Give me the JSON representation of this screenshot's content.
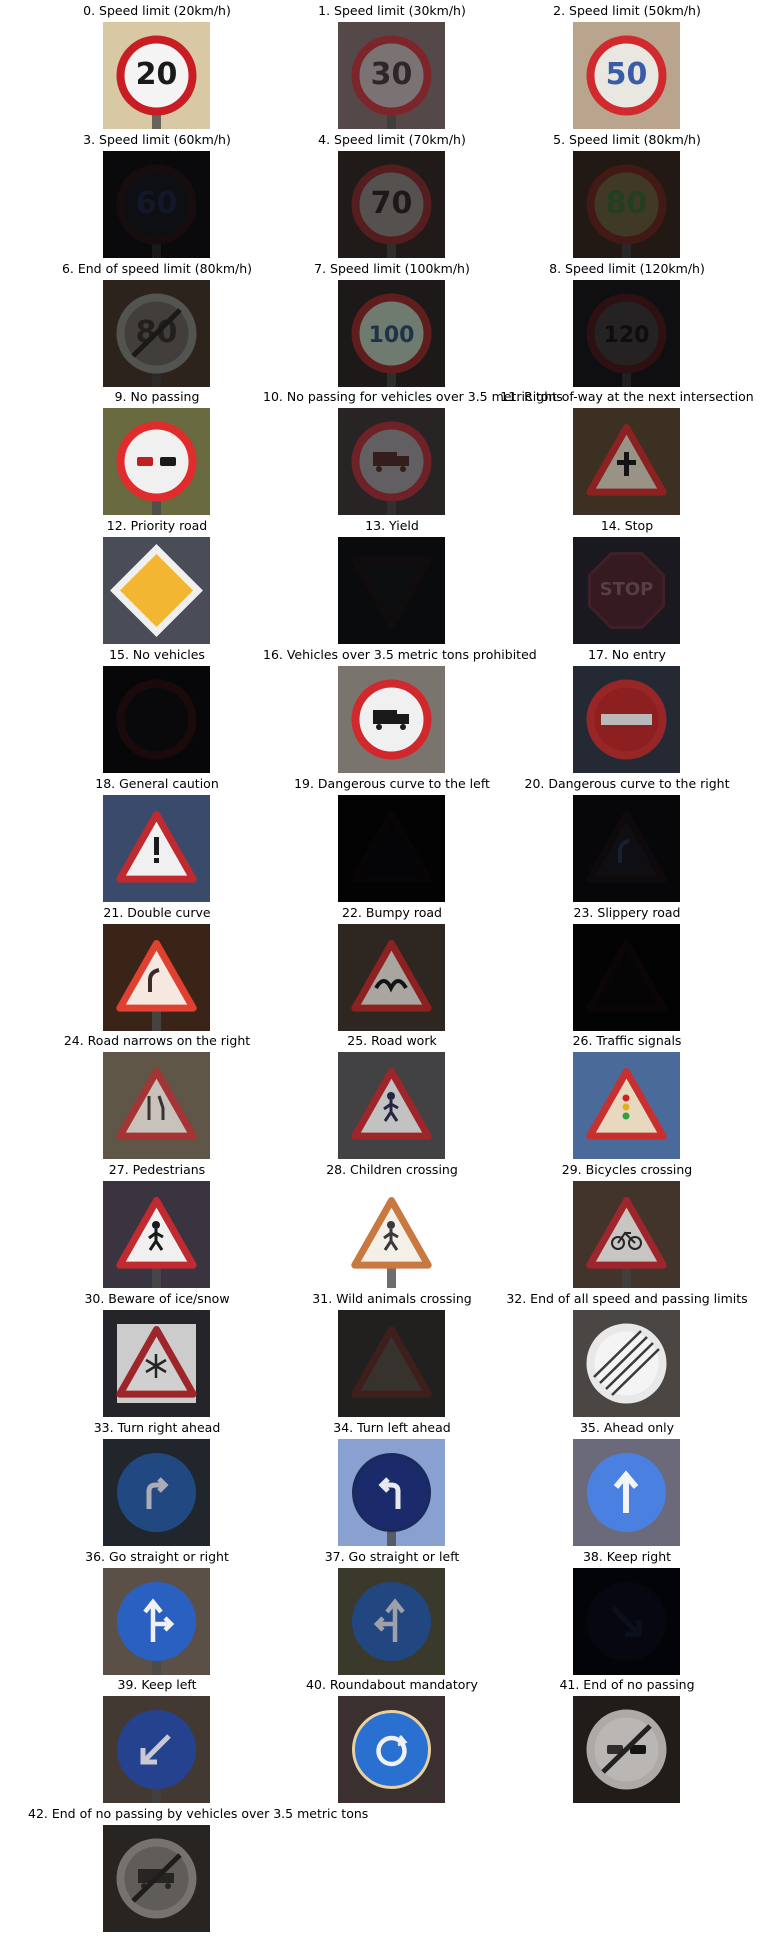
{
  "title": "",
  "signs": [
    {
      "label": "0. Speed limit (20km/h)",
      "bg": "#d8c8a4",
      "shape": "circle",
      "rim": "#c81e23",
      "fill": "#f4f4f4",
      "glyph": "20",
      "glyph_color": "#1a1a1a",
      "brightness": 1.0,
      "pole": true
    },
    {
      "label": "1. Speed limit (30km/h)",
      "bg": "#6b5a5c",
      "shape": "circle",
      "rim": "#9b2f35",
      "fill": "#9a8f92",
      "glyph": "30",
      "glyph_color": "#3b3036",
      "brightness": 0.8,
      "pole": true
    },
    {
      "label": "2. Speed limit (50km/h)",
      "bg": "#b9a58d",
      "shape": "circle",
      "rim": "#d02a2e",
      "fill": "#e8e8e0",
      "glyph": "50",
      "glyph_color": "#3a5ca8",
      "brightness": 1.0,
      "pole": false
    },
    {
      "label": "3. Speed limit (60km/h)",
      "bg": "#1a1b1f",
      "shape": "circle",
      "rim": "#3a2025",
      "fill": "#24262e",
      "glyph": "60",
      "glyph_color": "#2e3a6a",
      "brightness": 0.4,
      "pole": true
    },
    {
      "label": "4. Speed limit (70km/h)",
      "bg": "#2e2624",
      "shape": "circle",
      "rim": "#7a2a2c",
      "fill": "#7a7472",
      "glyph": "70",
      "glyph_color": "#2a2424",
      "brightness": 0.7,
      "pole": true
    },
    {
      "label": "5. Speed limit (80km/h)",
      "bg": "#3a2a22",
      "shape": "circle",
      "rim": "#6e2a22",
      "fill": "#6a6040",
      "glyph": "80",
      "glyph_color": "#3a6a3a",
      "brightness": 0.6,
      "pole": true
    },
    {
      "label": "6. End of speed limit (80km/h)",
      "bg": "#4a3c30",
      "shape": "circle-slash",
      "rim": "#8a8a86",
      "fill": "#6e6a62",
      "glyph": "80",
      "glyph_color": "#3a3430",
      "brightness": 0.6,
      "pole": true
    },
    {
      "label": "7. Speed limit (100km/h)",
      "bg": "#2c2424",
      "shape": "circle",
      "rim": "#8a2a2c",
      "fill": "#a0b0a0",
      "glyph": "100",
      "glyph_color": "#2a4a6a",
      "brightness": 0.7,
      "pole": true
    },
    {
      "label": "8. Speed limit (120km/h)",
      "bg": "#1e1c20",
      "shape": "circle",
      "rim": "#5a2024",
      "fill": "#4a4448",
      "glyph": "120",
      "glyph_color": "#1e1a1a",
      "brightness": 0.5,
      "pole": true
    },
    {
      "label": "9. No passing",
      "bg": "#6a6a40",
      "shape": "circle",
      "rim": "#e02c2c",
      "fill": "#f0f0f0",
      "glyph": "cars",
      "glyph_color": "#c02020",
      "brightness": 1.0,
      "pole": true
    },
    {
      "label": "10. No passing for vehicles over 3.5 metric tons",
      "bg": "#3a3434",
      "shape": "circle",
      "rim": "#a0303a",
      "fill": "#8c888c",
      "glyph": "truck",
      "glyph_color": "#4a2a2a",
      "brightness": 0.7,
      "pole": true
    },
    {
      "label": "11. Right-of-way at the next intersection",
      "bg": "#4a3c2a",
      "shape": "triangle",
      "rim": "#b02a2a",
      "fill": "#c0b8a8",
      "glyph": "cross",
      "glyph_color": "#1a1a1a",
      "brightness": 0.8,
      "pole": false
    },
    {
      "label": "12. Priority road",
      "bg": "#4a4c58",
      "shape": "diamond",
      "rim": "#f0f0f0",
      "fill": "#f2b632",
      "glyph": "",
      "glyph_color": "#000",
      "brightness": 1.0,
      "pole": false
    },
    {
      "label": "13. Yield",
      "bg": "#1a1c22",
      "shape": "inverted-triangle",
      "rim": "#2c1e22",
      "fill": "#22242a",
      "glyph": "",
      "glyph_color": "#000",
      "brightness": 0.4,
      "pole": false
    },
    {
      "label": "14. Stop",
      "bg": "#2a2a34",
      "shape": "octagon",
      "rim": "#6a3444",
      "fill": "#5a2c38",
      "glyph": "STOP",
      "glyph_color": "#8a6a72",
      "brightness": 0.6,
      "pole": false
    },
    {
      "label": "15. No vehicles",
      "bg": "#14141a",
      "shape": "circle",
      "rim": "#4a1e22",
      "fill": "#1c1c22",
      "glyph": "",
      "glyph_color": "#000",
      "brightness": 0.35,
      "pole": false
    },
    {
      "label": "16. Vehicles over 3.5 metric tons prohibited",
      "bg": "#7a746e",
      "shape": "circle",
      "rim": "#d0282c",
      "fill": "#f0f0f0",
      "glyph": "truck",
      "glyph_color": "#1a1a1a",
      "brightness": 1.0,
      "pole": false
    },
    {
      "label": "17. No entry",
      "bg": "#2e3442",
      "shape": "circle",
      "rim": "#c03030",
      "fill": "#b02828",
      "glyph": "bar",
      "glyph_color": "#e8e8e8",
      "brightness": 0.8,
      "pole": false
    },
    {
      "label": "18. General caution",
      "bg": "#3a4a6a",
      "shape": "triangle",
      "rim": "#c02a2e",
      "fill": "#f0f0f0",
      "glyph": "!",
      "glyph_color": "#1a1a1a",
      "brightness": 1.0,
      "pole": false
    },
    {
      "label": "19. Dangerous curve to the left",
      "bg": "#0e0c12",
      "shape": "triangle",
      "rim": "#221418",
      "fill": "#141218",
      "glyph": "",
      "glyph_color": "#000",
      "brightness": 0.25,
      "pole": false
    },
    {
      "label": "20. Dangerous curve to the right",
      "bg": "#14161e",
      "shape": "triangle",
      "rim": "#2a1e24",
      "fill": "#2a2a38",
      "glyph": "curve",
      "glyph_color": "#4a5a8a",
      "brightness": 0.35,
      "pole": false
    },
    {
      "label": "21. Double curve",
      "bg": "#3a2418",
      "shape": "triangle",
      "rim": "#e04030",
      "fill": "#f4e8e0",
      "glyph": "curve",
      "glyph_color": "#3a2a2a",
      "brightness": 1.0,
      "pole": true
    },
    {
      "label": "22. Bumpy road",
      "bg": "#3a3028",
      "shape": "triangle",
      "rim": "#b02a2a",
      "fill": "#d4d0c8",
      "glyph": "bump",
      "glyph_color": "#1a1a1a",
      "brightness": 0.8,
      "pole": false
    },
    {
      "label": "23. Slippery road",
      "bg": "#0e0c10",
      "shape": "triangle",
      "rim": "#2a1418",
      "fill": "#1a1418",
      "glyph": "",
      "glyph_color": "#000",
      "brightness": 0.25,
      "pole": false
    },
    {
      "label": "24. Road narrows on the right",
      "bg": "#6a6050",
      "shape": "triangle",
      "rim": "#b83a3a",
      "fill": "#e0d8d0",
      "glyph": "narrow",
      "glyph_color": "#3a3a3a",
      "brightness": 0.9,
      "pole": false
    },
    {
      "label": "25. Road work",
      "bg": "#4a4a4c",
      "shape": "triangle",
      "rim": "#b02a2e",
      "fill": "#d8d8d8",
      "glyph": "worker",
      "glyph_color": "#2a2a4a",
      "brightness": 0.9,
      "pole": false
    },
    {
      "label": "26. Traffic signals",
      "bg": "#4a6a9a",
      "shape": "triangle",
      "rim": "#c83030",
      "fill": "#e8d8c0",
      "glyph": "lights",
      "glyph_color": "#c02020",
      "brightness": 1.0,
      "pole": false
    },
    {
      "label": "27. Pedestrians",
      "bg": "#3a3440",
      "shape": "triangle",
      "rim": "#c02a30",
      "fill": "#f0f0f0",
      "glyph": "person",
      "glyph_color": "#1a1a1a",
      "brightness": 1.0,
      "pole": true
    },
    {
      "label": "28. Children crossing",
      "bg": "#ffffff",
      "shape": "triangle",
      "rim": "#c87840",
      "fill": "#f4f0e8",
      "glyph": "children",
      "glyph_color": "#3a3a3a",
      "brightness": 1.0,
      "pole": true
    },
    {
      "label": "29. Bicycles crossing",
      "bg": "#4a3a30",
      "shape": "triangle",
      "rim": "#b02a30",
      "fill": "#e0dcd8",
      "glyph": "bike",
      "glyph_color": "#2a2a2a",
      "brightness": 0.9,
      "pole": true
    },
    {
      "label": "30. Beware of ice/snow",
      "bg": "#2a2a2e",
      "shape": "triangle-board",
      "rim": "#b02a2e",
      "fill": "#e8e8e8",
      "glyph": "snow",
      "glyph_color": "#2a2a2a",
      "brightness": 0.9,
      "pole": false
    },
    {
      "label": "31. Wild animals crossing",
      "bg": "#3a3634",
      "shape": "triangle",
      "rim": "#6a3430",
      "fill": "#5a544e",
      "glyph": "",
      "glyph_color": "#000",
      "brightness": 0.6,
      "pole": false
    },
    {
      "label": "32. End of all speed and passing limits",
      "bg": "#4a4644",
      "shape": "circle-stripes",
      "rim": "#e8e8e8",
      "fill": "#f4f4f4",
      "glyph": "",
      "glyph_color": "#2a2a2a",
      "brightness": 1.0,
      "pole": false
    },
    {
      "label": "33. Turn right ahead",
      "bg": "#2a3038",
      "shape": "blue-circle",
      "rim": "#2a5aa0",
      "fill": "#2a5aa0",
      "glyph": "arrow-right",
      "glyph_color": "#d8d8e8",
      "brightness": 0.8,
      "pole": false
    },
    {
      "label": "34. Turn left ahead",
      "bg": "#8aa0d0",
      "shape": "blue-circle",
      "rim": "#1a2a5a",
      "fill": "#1a2a6a",
      "glyph": "arrow-left",
      "glyph_color": "#e8e8f0",
      "brightness": 1.0,
      "pole": true
    },
    {
      "label": "35. Ahead only",
      "bg": "#6a6a7a",
      "shape": "blue-circle",
      "rim": "#4a80e0",
      "fill": "#4a80e0",
      "glyph": "arrow-up",
      "glyph_color": "#f4f4f4",
      "brightness": 1.0,
      "pole": false
    },
    {
      "label": "36. Go straight or right",
      "bg": "#5a5048",
      "shape": "blue-circle",
      "rim": "#2a60c0",
      "fill": "#2a60c0",
      "glyph": "arrow-up-right",
      "glyph_color": "#f0f0f0",
      "brightness": 1.0,
      "pole": true
    },
    {
      "label": "37. Go straight or left",
      "bg": "#4a4838",
      "shape": "blue-circle",
      "rim": "#2a58a0",
      "fill": "#2a58a0",
      "glyph": "arrow-up-left",
      "glyph_color": "#c8c8d8",
      "brightness": 0.8,
      "pole": false
    },
    {
      "label": "38. Keep right",
      "bg": "#0c0e18",
      "shape": "blue-circle",
      "rim": "#141a34",
      "fill": "#141a3a",
      "glyph": "arrow-down-right",
      "glyph_color": "#2a3460",
      "brightness": 0.3,
      "pole": false
    },
    {
      "label": "39. Keep left",
      "bg": "#4a4038",
      "shape": "blue-circle",
      "rim": "#2a4aa0",
      "fill": "#2a4aa0",
      "glyph": "arrow-down-left",
      "glyph_color": "#e0e0e8",
      "brightness": 0.9,
      "pole": true
    },
    {
      "label": "40. Roundabout mandatory",
      "bg": "#3a3030",
      "shape": "blue-circle",
      "rim": "#e8d0a0",
      "fill": "#2a70d0",
      "glyph": "roundabout",
      "glyph_color": "#f0f0f0",
      "brightness": 1.0,
      "pole": false
    },
    {
      "label": "41. End of no passing",
      "bg": "#2a2420",
      "shape": "circle-slash",
      "rim": "#d8d4d0",
      "fill": "#e8e4e0",
      "glyph": "cars",
      "glyph_color": "#3a3a3a",
      "brightness": 0.8,
      "pole": false
    },
    {
      "label": "42. End of no passing by vehicles over 3.5 metric tons",
      "bg": "#3a3430",
      "shape": "circle-slash",
      "rim": "#a8a4a0",
      "fill": "#8a8680",
      "glyph": "truck",
      "glyph_color": "#3a3430",
      "brightness": 0.7,
      "pole": false
    }
  ]
}
